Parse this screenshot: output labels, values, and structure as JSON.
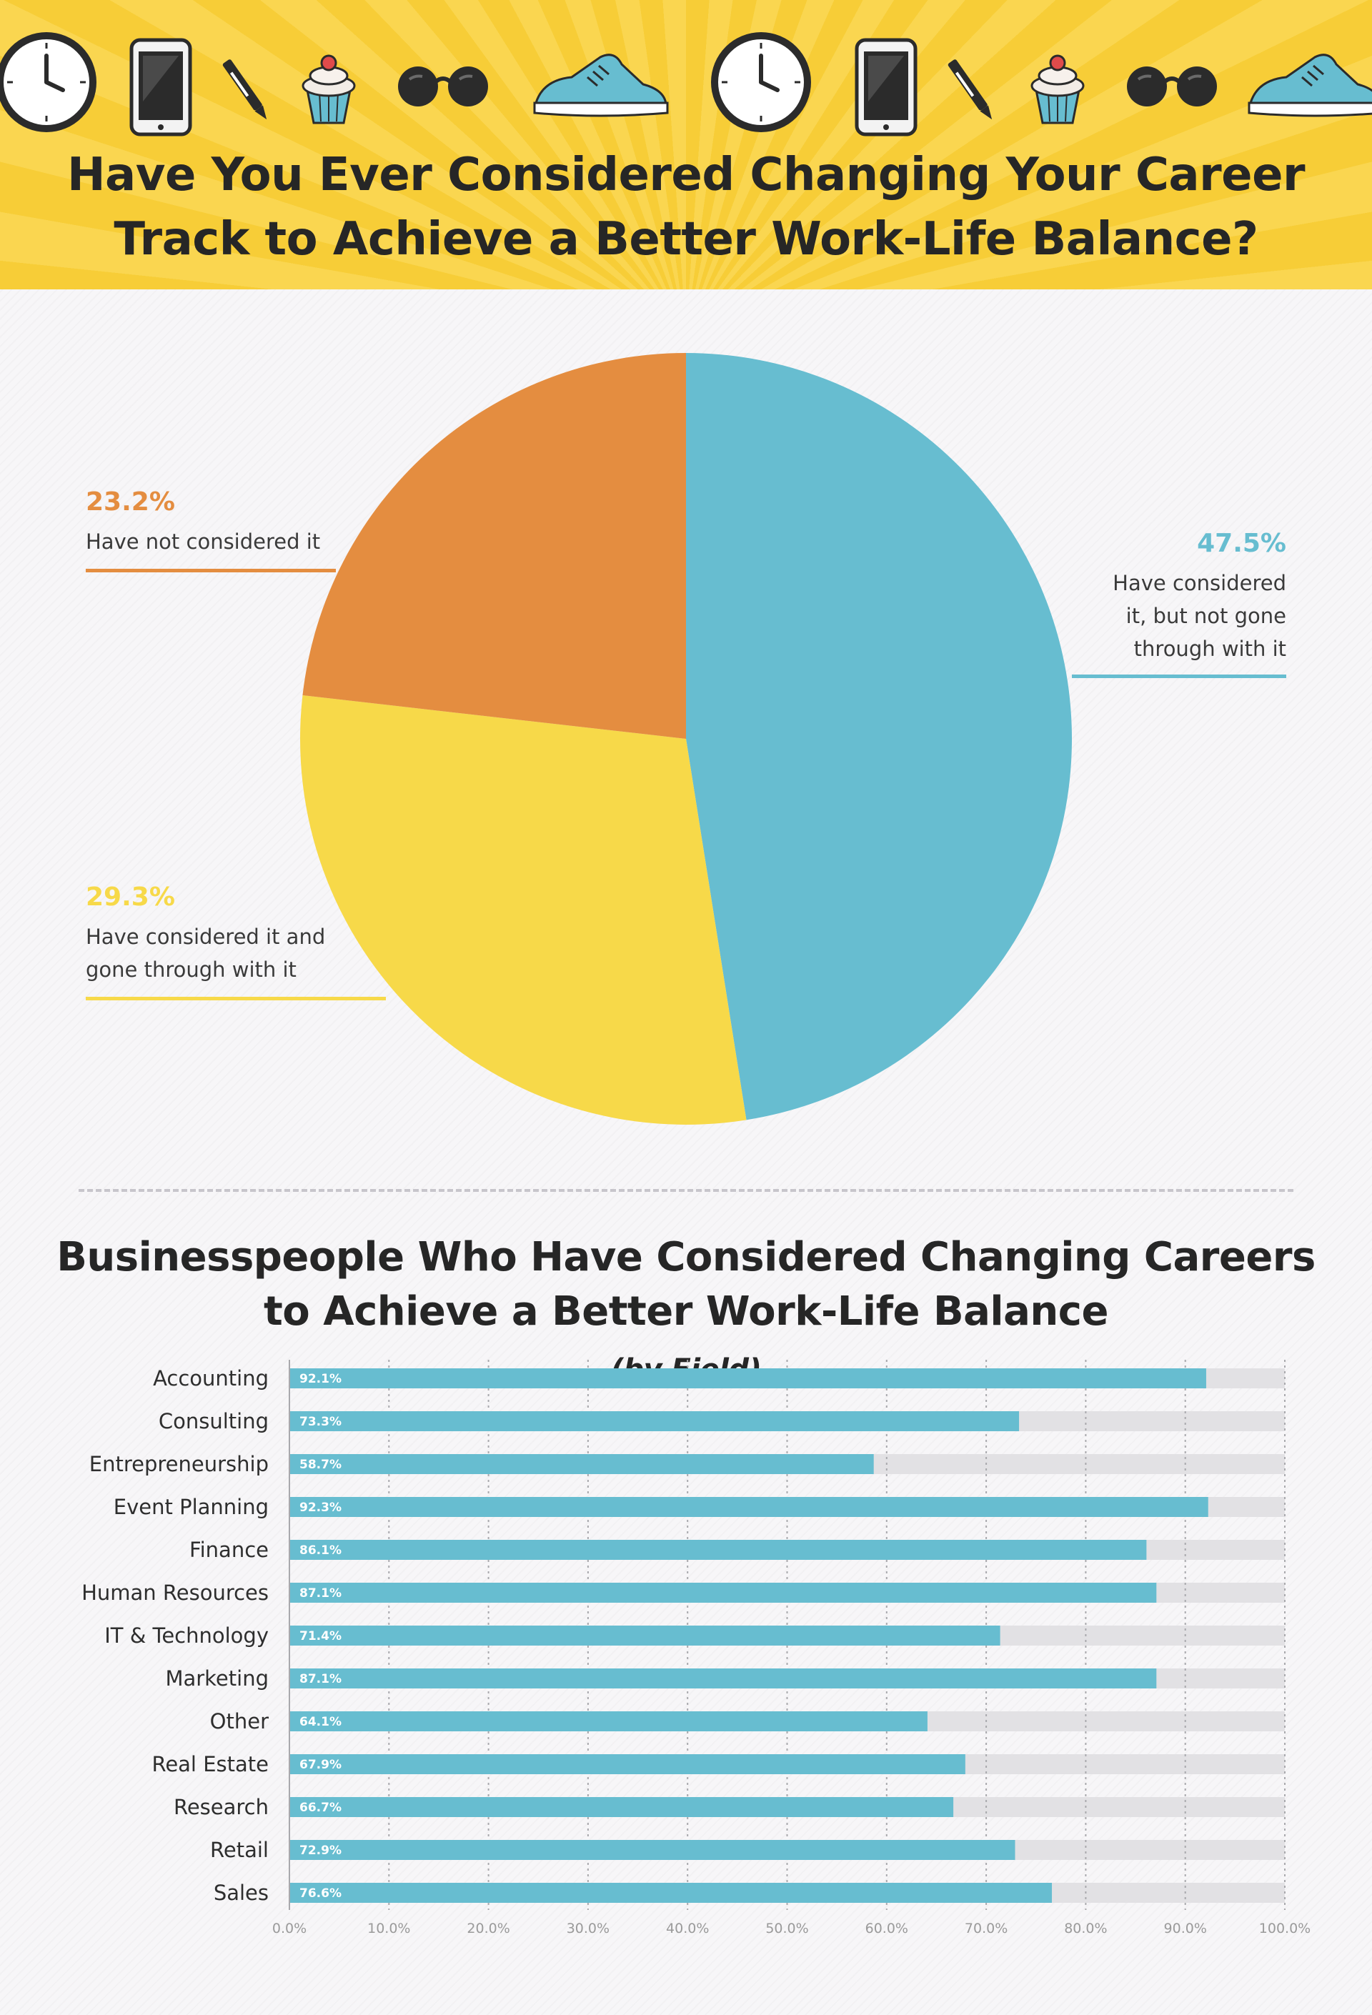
{
  "header": {
    "title_line1": "Have You Ever Considered Changing Your Career",
    "title_line2": "Track to Achieve a Better Work-Life Balance?",
    "icons": [
      "clock-icon",
      "smartphone-icon",
      "pen-icon",
      "cupcake-icon",
      "sunglasses-icon",
      "sneaker-icon",
      "clock-icon",
      "smartphone-icon",
      "pen-icon",
      "cupcake-icon",
      "sunglasses-icon",
      "sneaker-icon"
    ]
  },
  "pie": {
    "slices": [
      {
        "pct_label": "47.5%",
        "desc": [
          "Have considered",
          "it, but not gone",
          "through with it"
        ],
        "value": 47.5,
        "color": "#67bdd0"
      },
      {
        "pct_label": "29.3%",
        "desc": [
          "Have considered it and",
          "gone through with it"
        ],
        "value": 29.3,
        "color": "#f7d949"
      },
      {
        "pct_label": "23.2%",
        "desc": [
          "Have not considered it"
        ],
        "value": 23.2,
        "color": "#e48d40"
      }
    ]
  },
  "bars": {
    "title_line1": "Businesspeople Who Have Considered Changing Careers",
    "title_line2": "to Achieve a Better Work-Life Balance",
    "title_suffix": "(by Field)"
  },
  "chart_data": [
    {
      "type": "pie",
      "title": "Have You Ever Considered Changing Your Career Track to Achieve a Better Work-Life Balance?",
      "categories": [
        "Have considered it, but not gone through with it",
        "Have considered it and gone through with it",
        "Have not considered it"
      ],
      "values": [
        47.5,
        29.3,
        23.2
      ],
      "colors": [
        "#67bdd0",
        "#f7d949",
        "#e48d40"
      ]
    },
    {
      "type": "bar",
      "orientation": "horizontal",
      "title": "Businesspeople Who Have Considered Changing Careers to Achieve a Better Work-Life Balance (by Field)",
      "categories": [
        "Accounting",
        "Consulting",
        "Entrepreneurship",
        "Event Planning",
        "Finance",
        "Human Resources",
        "IT & Technology",
        "Marketing",
        "Other",
        "Real Estate",
        "Research",
        "Retail",
        "Sales"
      ],
      "values": [
        92.1,
        73.3,
        58.7,
        92.3,
        86.1,
        87.1,
        71.4,
        87.1,
        64.1,
        67.9,
        66.7,
        72.9,
        76.6
      ],
      "value_labels": [
        "92.1%",
        "73.3%",
        "58.7%",
        "92.3%",
        "86.1%",
        "87.1%",
        "71.4%",
        "87.1%",
        "64.1%",
        "67.9%",
        "66.7%",
        "72.9%",
        "76.6%"
      ],
      "xlim": [
        0,
        100
      ],
      "x_ticks": [
        "0.0%",
        "10.0%",
        "20.0%",
        "30.0%",
        "40.0%",
        "50.0%",
        "60.0%",
        "70.0%",
        "80.0%",
        "90.0%",
        "100.0%"
      ],
      "bar_color": "#67bdd0",
      "track_color": "#e2e1e4",
      "grid": true
    }
  ]
}
